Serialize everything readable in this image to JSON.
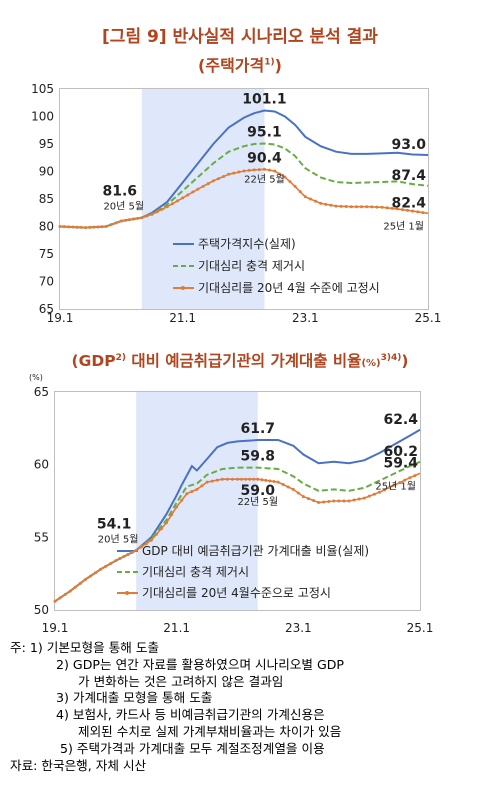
{
  "titles": {
    "main": "[그림 9]  반사실적 시나리오 분석 결과",
    "sub1": "(주택가격",
    "sub1_sup": "1)",
    "sub1_end": ")",
    "sub2_pre": "(GDP",
    "sub2_sup1": "2)",
    "sub2_mid": " 대비 예금취급기관의 가계대출 비율",
    "sub2_unit": "(%)",
    "sub2_sup2": "3)4)",
    "sub2_end": ")"
  },
  "colors": {
    "title": "#b0451f",
    "actual": "#4a72c4",
    "scenario_a": "#6aac44",
    "scenario_b": "#e07b39",
    "shade": "#dfe8fb"
  },
  "chart_data": [
    {
      "type": "line",
      "ylim": [
        65,
        105
      ],
      "yticks": [
        65,
        70,
        75,
        80,
        85,
        90,
        95,
        100,
        105
      ],
      "xticks": [
        "19.1",
        "21.1",
        "23.1",
        "25.1"
      ],
      "x_range": [
        "2019-01",
        "2025-01"
      ],
      "shade_range": [
        "2020-05",
        "2022-05"
      ],
      "legend_position": "lower-right",
      "series": [
        {
          "name": "주택가격지수(실제)",
          "style": "solid",
          "points": [
            [
              "2019-01",
              80.0
            ],
            [
              "2019-06",
              79.8
            ],
            [
              "2019-10",
              80.0
            ],
            [
              "2020-01",
              81.0
            ],
            [
              "2020-05",
              81.6
            ],
            [
              "2020-07",
              82.5
            ],
            [
              "2020-10",
              84.5
            ],
            [
              "2021-01",
              88.0
            ],
            [
              "2021-04",
              91.5
            ],
            [
              "2021-07",
              95.0
            ],
            [
              "2021-10",
              98.0
            ],
            [
              "2022-01",
              99.8
            ],
            [
              "2022-03",
              100.6
            ],
            [
              "2022-05",
              101.1
            ],
            [
              "2022-07",
              100.9
            ],
            [
              "2022-09",
              100.0
            ],
            [
              "2022-11",
              98.5
            ],
            [
              "2023-01",
              96.3
            ],
            [
              "2023-04",
              94.6
            ],
            [
              "2023-07",
              93.6
            ],
            [
              "2023-10",
              93.2
            ],
            [
              "2024-01",
              93.2
            ],
            [
              "2024-04",
              93.3
            ],
            [
              "2024-07",
              93.4
            ],
            [
              "2024-10",
              93.1
            ],
            [
              "2025-01",
              93.0
            ]
          ]
        },
        {
          "name": "기대심리 충격 제거시",
          "style": "dashed",
          "points": [
            [
              "2019-01",
              80.0
            ],
            [
              "2019-06",
              79.8
            ],
            [
              "2019-10",
              80.0
            ],
            [
              "2020-01",
              81.0
            ],
            [
              "2020-05",
              81.6
            ],
            [
              "2020-07",
              82.3
            ],
            [
              "2020-10",
              84.0
            ],
            [
              "2021-01",
              86.5
            ],
            [
              "2021-04",
              89.0
            ],
            [
              "2021-07",
              91.5
            ],
            [
              "2021-10",
              93.6
            ],
            [
              "2022-01",
              94.6
            ],
            [
              "2022-03",
              95.0
            ],
            [
              "2022-05",
              95.1
            ],
            [
              "2022-07",
              94.9
            ],
            [
              "2022-09",
              94.2
            ],
            [
              "2022-11",
              92.8
            ],
            [
              "2023-01",
              90.6
            ],
            [
              "2023-04",
              88.9
            ],
            [
              "2023-07",
              88.1
            ],
            [
              "2023-10",
              87.9
            ],
            [
              "2024-01",
              88.0
            ],
            [
              "2024-04",
              88.1
            ],
            [
              "2024-07",
              88.2
            ],
            [
              "2024-10",
              87.7
            ],
            [
              "2025-01",
              87.4
            ]
          ]
        },
        {
          "name": "기대심리를 20년 4월 수준에 고정시",
          "style": "dotted-marker",
          "points": [
            [
              "2019-01",
              80.0
            ],
            [
              "2019-06",
              79.8
            ],
            [
              "2019-10",
              80.0
            ],
            [
              "2020-01",
              81.0
            ],
            [
              "2020-05",
              81.6
            ],
            [
              "2020-07",
              82.2
            ],
            [
              "2020-10",
              83.6
            ],
            [
              "2021-01",
              85.2
            ],
            [
              "2021-04",
              86.8
            ],
            [
              "2021-07",
              88.3
            ],
            [
              "2021-10",
              89.5
            ],
            [
              "2022-01",
              90.1
            ],
            [
              "2022-03",
              90.3
            ],
            [
              "2022-05",
              90.4
            ],
            [
              "2022-07",
              90.1
            ],
            [
              "2022-09",
              89.0
            ],
            [
              "2022-11",
              87.3
            ],
            [
              "2023-01",
              85.4
            ],
            [
              "2023-04",
              84.2
            ],
            [
              "2023-07",
              83.7
            ],
            [
              "2023-10",
              83.6
            ],
            [
              "2024-01",
              83.6
            ],
            [
              "2024-04",
              83.5
            ],
            [
              "2024-07",
              83.2
            ],
            [
              "2024-10",
              82.8
            ],
            [
              "2025-01",
              82.4
            ]
          ]
        }
      ],
      "annotations": [
        {
          "text": "101.1",
          "x": "2022-05",
          "y": 101.1,
          "pos": "above"
        },
        {
          "text": "95.1",
          "x": "2022-05",
          "y": 95.1,
          "pos": "above"
        },
        {
          "text": "90.4",
          "x": "2022-05",
          "y": 90.4,
          "pos": "above"
        },
        {
          "text": "22년 5월",
          "x": "2022-05",
          "y": 90.4,
          "pos": "below"
        },
        {
          "text": "81.6",
          "x": "2020-05",
          "y": 81.6,
          "pos": "above-far"
        },
        {
          "text": "20년 5월",
          "x": "2020-05",
          "y": 81.6,
          "pos": "above-near"
        },
        {
          "text": "93.0",
          "x": "2025-01",
          "y": 93.0,
          "pos": "above-left"
        },
        {
          "text": "87.4",
          "x": "2025-01",
          "y": 87.4,
          "pos": "above-left"
        },
        {
          "text": "82.4",
          "x": "2025-01",
          "y": 82.4,
          "pos": "above-left"
        },
        {
          "text": "25년 1월",
          "x": "2025-01",
          "y": 82.4,
          "pos": "below-left"
        }
      ]
    },
    {
      "type": "line",
      "ylim": [
        50,
        65
      ],
      "yticks": [
        50,
        55,
        60,
        65
      ],
      "yunit": "(%)",
      "xticks": [
        "19.1",
        "21.1",
        "23.1",
        "25.1"
      ],
      "x_range": [
        "2019-01",
        "2025-01"
      ],
      "shade_range": [
        "2020-05",
        "2022-05"
      ],
      "legend_position": "lower-right",
      "series": [
        {
          "name": "GDP 대비 예금취급기관 가계대출 비율(실제)",
          "style": "solid",
          "points": [
            [
              "2019-01",
              50.6
            ],
            [
              "2019-04",
              51.3
            ],
            [
              "2019-07",
              52.1
            ],
            [
              "2019-10",
              52.8
            ],
            [
              "2020-01",
              53.4
            ],
            [
              "2020-05",
              54.1
            ],
            [
              "2020-08",
              55.0
            ],
            [
              "2020-11",
              56.6
            ],
            [
              "2021-01",
              57.9
            ],
            [
              "2021-02",
              58.6
            ],
            [
              "2021-04",
              59.9
            ],
            [
              "2021-05",
              59.6
            ],
            [
              "2021-07",
              60.4
            ],
            [
              "2021-09",
              61.2
            ],
            [
              "2021-11",
              61.5
            ],
            [
              "2022-01",
              61.6
            ],
            [
              "2022-05",
              61.7
            ],
            [
              "2022-09",
              61.7
            ],
            [
              "2022-12",
              61.3
            ],
            [
              "2023-02",
              60.7
            ],
            [
              "2023-05",
              60.1
            ],
            [
              "2023-08",
              60.2
            ],
            [
              "2023-11",
              60.1
            ],
            [
              "2024-02",
              60.3
            ],
            [
              "2024-05",
              60.8
            ],
            [
              "2024-08",
              61.4
            ],
            [
              "2024-11",
              62.0
            ],
            [
              "2025-01",
              62.4
            ]
          ]
        },
        {
          "name": "기대심리 충격 제거시",
          "style": "dashed",
          "points": [
            [
              "2019-01",
              50.6
            ],
            [
              "2019-04",
              51.3
            ],
            [
              "2019-07",
              52.1
            ],
            [
              "2019-10",
              52.8
            ],
            [
              "2020-01",
              53.4
            ],
            [
              "2020-05",
              54.1
            ],
            [
              "2020-08",
              54.9
            ],
            [
              "2020-11",
              56.2
            ],
            [
              "2021-01",
              57.4
            ],
            [
              "2021-03",
              58.5
            ],
            [
              "2021-05",
              58.7
            ],
            [
              "2021-07",
              59.3
            ],
            [
              "2021-10",
              59.7
            ],
            [
              "2022-01",
              59.8
            ],
            [
              "2022-05",
              59.8
            ],
            [
              "2022-09",
              59.7
            ],
            [
              "2022-12",
              59.2
            ],
            [
              "2023-02",
              58.7
            ],
            [
              "2023-05",
              58.2
            ],
            [
              "2023-08",
              58.3
            ],
            [
              "2023-11",
              58.2
            ],
            [
              "2024-02",
              58.4
            ],
            [
              "2024-05",
              58.9
            ],
            [
              "2024-08",
              59.4
            ],
            [
              "2024-11",
              59.9
            ],
            [
              "2025-01",
              60.2
            ]
          ]
        },
        {
          "name": "기대심리를 20년 4월수준으로 고정시",
          "style": "dotted-marker",
          "points": [
            [
              "2019-01",
              50.6
            ],
            [
              "2019-04",
              51.3
            ],
            [
              "2019-07",
              52.1
            ],
            [
              "2019-10",
              52.8
            ],
            [
              "2020-01",
              53.4
            ],
            [
              "2020-05",
              54.1
            ],
            [
              "2020-08",
              54.8
            ],
            [
              "2020-11",
              56.0
            ],
            [
              "2021-01",
              57.1
            ],
            [
              "2021-03",
              58.0
            ],
            [
              "2021-05",
              58.3
            ],
            [
              "2021-07",
              58.8
            ],
            [
              "2021-10",
              59.0
            ],
            [
              "2022-01",
              59.0
            ],
            [
              "2022-05",
              59.0
            ],
            [
              "2022-09",
              58.8
            ],
            [
              "2022-12",
              58.3
            ],
            [
              "2023-02",
              57.8
            ],
            [
              "2023-05",
              57.4
            ],
            [
              "2023-08",
              57.5
            ],
            [
              "2023-11",
              57.5
            ],
            [
              "2024-02",
              57.7
            ],
            [
              "2024-05",
              58.1
            ],
            [
              "2024-08",
              58.6
            ],
            [
              "2024-11",
              59.1
            ],
            [
              "2025-01",
              59.4
            ]
          ]
        }
      ],
      "annotations": [
        {
          "text": "61.7",
          "x": "2022-05",
          "y": 61.7,
          "pos": "above"
        },
        {
          "text": "59.8",
          "x": "2022-05",
          "y": 59.8,
          "pos": "above"
        },
        {
          "text": "59.0",
          "x": "2022-05",
          "y": 59.0,
          "pos": "below"
        },
        {
          "text": "22년 5월",
          "x": "2022-05",
          "y": 59.0,
          "pos": "below-far"
        },
        {
          "text": "54.1",
          "x": "2020-05",
          "y": 54.1,
          "pos": "above-far"
        },
        {
          "text": "20년 5월",
          "x": "2020-05",
          "y": 54.1,
          "pos": "above-near"
        },
        {
          "text": "62.4",
          "x": "2025-01",
          "y": 62.4,
          "pos": "above-left"
        },
        {
          "text": "60.2",
          "x": "2025-01",
          "y": 60.2,
          "pos": "above-left"
        },
        {
          "text": "59.4",
          "x": "2025-01",
          "y": 59.4,
          "pos": "above-left"
        },
        {
          "text": "25년 1월",
          "x": "2025-01",
          "y": 59.4,
          "pos": "below-left"
        }
      ]
    }
  ],
  "notes": {
    "n1": "주: 1) 기본모형을 통해 도출",
    "n2a": "2) GDP는 연간 자료를 활용하였으며 시나리오별 GDP",
    "n2b": "가 변화하는 것은 고려하지 않은 결과임",
    "n3": "3) 가계대출 모형을 통해 도출",
    "n4a": "4) 보험사, 카드사 등 비예금취급기관의 가계신용은",
    "n4b": "제외된 수치로 실제 가계부채비율과는 차이가 있음",
    "n5": "5) 주택가격과 가계대출 모두 계절조정계열을 이용",
    "source": "자료: 한국은행, 자체 시산"
  }
}
